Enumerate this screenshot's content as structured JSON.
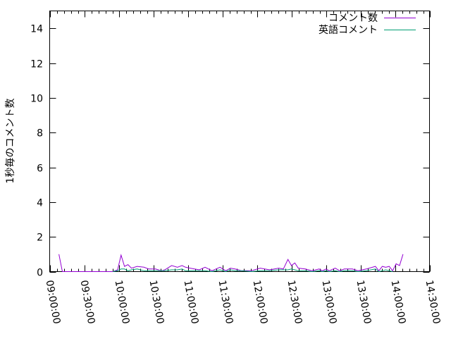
{
  "chart_data": {
    "type": "line",
    "title": "",
    "xlabel": "",
    "ylabel": "1秒毎のコメント数",
    "ylim": [
      0,
      15
    ],
    "yticks": [
      0,
      2,
      4,
      6,
      8,
      10,
      12,
      14
    ],
    "xlim": [
      "09:00:00",
      "14:30:00"
    ],
    "xticks": [
      "09:00:00",
      "09:30:00",
      "10:00:00",
      "10:30:00",
      "11:00:00",
      "11:30:00",
      "12:00:00",
      "12:30:00",
      "13:00:00",
      "13:30:00",
      "14:00:00",
      "14:30:00"
    ],
    "grid": false,
    "legend": "top-right",
    "series": [
      {
        "name": "コメント数",
        "color": "#9400d3",
        "x": [
          "09:08",
          "09:11",
          "09:55",
          "09:59",
          "10:02",
          "10:05",
          "10:08",
          "10:11",
          "10:16",
          "10:22",
          "10:26",
          "10:32",
          "10:37",
          "10:40",
          "10:46",
          "10:51",
          "10:55",
          "10:58",
          "11:02",
          "11:10",
          "11:15",
          "11:21",
          "11:28",
          "11:33",
          "11:37",
          "11:41",
          "11:47",
          "11:55",
          "12:03",
          "12:11",
          "12:19",
          "12:23",
          "12:27",
          "12:30",
          "12:33",
          "12:36",
          "12:42",
          "12:48",
          "12:54",
          "12:57",
          "13:00",
          "13:03",
          "13:08",
          "13:12",
          "13:16",
          "13:23",
          "13:28",
          "13:35",
          "13:43",
          "13:46",
          "13:49",
          "13:52",
          "13:55",
          "13:58",
          "14:01",
          "14:04",
          "14:07"
        ],
        "y": [
          1.0,
          0,
          0,
          0.1,
          0.95,
          0.3,
          0.4,
          0.2,
          0.3,
          0.25,
          0.15,
          0.15,
          0.05,
          0.1,
          0.35,
          0.25,
          0.35,
          0.25,
          0.2,
          0.1,
          0.25,
          0.05,
          0.25,
          0.05,
          0.2,
          0.15,
          0.05,
          0.05,
          0.2,
          0.1,
          0.2,
          0.15,
          0.7,
          0.35,
          0.5,
          0.2,
          0.15,
          0.05,
          0.15,
          0.05,
          0.15,
          0.05,
          0.2,
          0.05,
          0.15,
          0.15,
          0.05,
          0.15,
          0.3,
          0.05,
          0.3,
          0.25,
          0.3,
          0.05,
          0.45,
          0.35,
          1.0
        ]
      },
      {
        "name": "英語コメント",
        "color": "#009e73",
        "x": [
          "09:55",
          "09:59",
          "10:02",
          "10:05",
          "10:08",
          "10:11",
          "10:16",
          "10:22",
          "10:26",
          "10:32",
          "10:37",
          "10:40",
          "10:46",
          "10:51",
          "10:55",
          "10:58",
          "11:02",
          "11:10",
          "11:15",
          "11:21",
          "11:28",
          "11:33",
          "11:37",
          "11:41",
          "11:47",
          "11:55",
          "12:03",
          "12:11",
          "12:19",
          "12:23",
          "12:27",
          "12:30",
          "12:33",
          "12:36",
          "12:42",
          "12:48",
          "12:54",
          "12:57",
          "13:00",
          "13:03",
          "13:08",
          "13:12",
          "13:16",
          "13:23",
          "13:28",
          "13:35",
          "13:43",
          "13:46",
          "13:49",
          "13:52",
          "13:55",
          "13:58"
        ],
        "y": [
          0,
          0.05,
          0.15,
          0.15,
          0.05,
          0.1,
          0.15,
          0.05,
          0.05,
          0.05,
          0.05,
          0.05,
          0.1,
          0.1,
          0.15,
          0.05,
          0.05,
          0.05,
          0.05,
          0,
          0.1,
          0,
          0.1,
          0.05,
          0.05,
          0,
          0.05,
          0.05,
          0.1,
          0.1,
          0.1,
          0.15,
          0.1,
          0.05,
          0.05,
          0,
          0.05,
          0,
          0.05,
          0,
          0.05,
          0,
          0.05,
          0.05,
          0,
          0.05,
          0.15,
          0,
          0.05,
          0.1,
          0.05,
          0
        ]
      }
    ]
  }
}
